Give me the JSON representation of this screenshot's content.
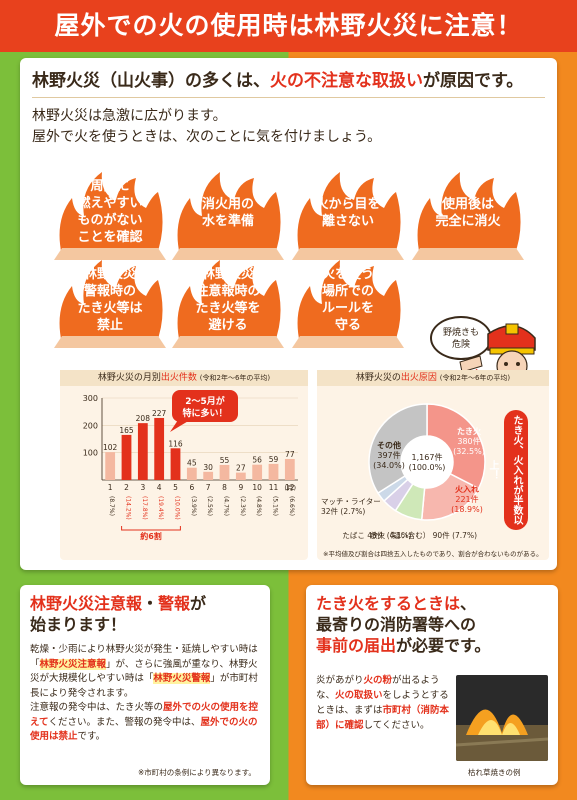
{
  "title": "屋外での火の使用時は林野火災に注意！",
  "lead": {
    "pre": "林野火災（山火事）の多くは、",
    "red": "火の不注意な取扱い",
    "post": "が原因です。"
  },
  "intro": [
    "林野火災は急激に広がります。",
    "屋外で火を使うときは、次のことに気を付けましょう。"
  ],
  "tips": [
    "周囲に\n燃えやすい\nものがない\nことを確認",
    "消火用の\n水を準備",
    "火から目を\n離さない",
    "使用後は\n完全に消火",
    "林野火災\n警報時の\nたき火等は\n禁止",
    "林野火災\n注意報時の\nたき火等を\n避ける",
    "火を使う\n場所での\nルールを\n守る"
  ],
  "mascot": {
    "bubble": "野焼きも\n危険"
  },
  "monthly": {
    "title_pre": "林野火災の月別",
    "title_red": "出火件数",
    "title_note": "(令和2年〜6年の平均)",
    "callout": "2〜5月が\n特に多い！",
    "bracket": "約6割"
  },
  "causes": {
    "title_pre": "林野火災の",
    "title_red": "出火原因",
    "title_note": "(令和2年〜6年の平均)",
    "center": [
      "1,167件",
      "(100.0%)"
    ],
    "banner": "たき火、火入れが半数以上！",
    "note": "※平均値及び割合は四捨五入したものであり、割合が合わないものがある。"
  },
  "chart_data": [
    {
      "type": "bar",
      "title": "林野火災の月別出火件数 (令和2年〜6年の平均)",
      "categories": [
        "1",
        "2",
        "3",
        "4",
        "5",
        "6",
        "7",
        "8",
        "9",
        "10",
        "11",
        "12"
      ],
      "values": [
        102,
        165,
        208,
        227,
        116,
        45,
        30,
        55,
        27,
        56,
        59,
        77
      ],
      "percent_labels": [
        "(8.7%)",
        "(14.2%)",
        "(17.8%)",
        "(19.4%)",
        "(10.0%)",
        "(3.9%)",
        "(2.5%)",
        "(4.7%)",
        "(2.3%)",
        "(4.8%)",
        "(5.1%)",
        "(6.6%)"
      ],
      "unit": "(月)",
      "yticks": [
        100,
        200,
        300
      ],
      "ylim": [
        0,
        300
      ],
      "highlight_color": "#e3311c",
      "normal_color": "#f4b8a0"
    },
    {
      "type": "pie",
      "title": "林野火災の出火原因 (令和2年〜6年の平均)",
      "slices": [
        {
          "label": "たき火",
          "value": 380,
          "pct": "(32.5%)",
          "color": "#f4958a"
        },
        {
          "label": "火入れ",
          "value": 221,
          "pct": "(18.9%)",
          "color": "#f7b7ae"
        },
        {
          "label": "放火（疑い含む）",
          "value": 90,
          "pct": "(7.7%)",
          "color": "#cfe8b8"
        },
        {
          "label": "たばこ",
          "value": 48,
          "pct": "(4.1%)",
          "color": "#d9d0e8"
        },
        {
          "label": "マッチ・ライター",
          "value": 32,
          "pct": "(2.7%)",
          "color": "#ccd9e8"
        },
        {
          "label": "その他",
          "value": 397,
          "pct": "(34.0%)",
          "color": "#c4c4c4"
        }
      ]
    }
  ],
  "alert": {
    "head_a": "林野火災注意報",
    "head_dot": "・",
    "head_b": "警報",
    "head_c": "が",
    "head_d": "始まります！",
    "p1a": "乾燥・少雨により林野火災が発生・延焼しやすい時は「",
    "p1b": "林野火災注意報",
    "p1c": "」が、さらに強風が重なり、林野火災が大規模化しやすい時は「",
    "p1d": "林野火災警報",
    "p1e": "」が市町村長により発令されます。",
    "p2a": "注意報の発令中は、たき火等の",
    "p2b": "屋外での火の使用を控えて",
    "p2c": "ください。また、警報の発令中は、",
    "p2d": "屋外での火の使用は禁止",
    "p2e": "です。",
    "note": "※市町村の条例により異なります。"
  },
  "bonfire": {
    "head_a": "たき火をするときは",
    "head_b": "、",
    "head_c": "最寄りの消防署等への",
    "head_d": "事前の届出",
    "head_e": "が必要です。",
    "b1": "炎があがり",
    "b2": "火の粉",
    "b3": "が出るような、",
    "b4": "火の取扱い",
    "b5": "をしようとするときは、まずは",
    "b6": "市町村（消防本部）に確認",
    "b7": "してください。",
    "caption": "枯れ草焼きの例"
  }
}
